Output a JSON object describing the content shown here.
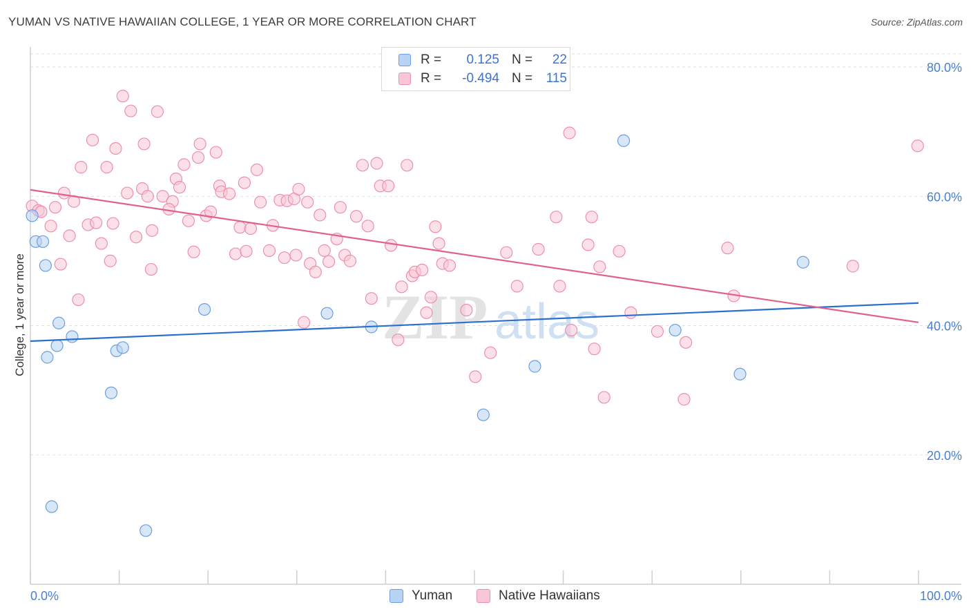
{
  "header": {
    "title": "YUMAN VS NATIVE HAWAIIAN COLLEGE, 1 YEAR OR MORE CORRELATION CHART",
    "source": "Source: ZipAtlas.com"
  },
  "legend_top": {
    "rows": [
      {
        "r_label": "R =",
        "r_value": "0.125",
        "n_label": "N =",
        "n_value": "22"
      },
      {
        "r_label": "R =",
        "r_value": "-0.494",
        "n_label": "N =",
        "n_value": "115"
      }
    ]
  },
  "legend_bottom": {
    "items": [
      "Yuman",
      "Native Hawaiians"
    ]
  },
  "watermark": {
    "zip": "ZIP",
    "atlas": "atlas"
  },
  "colors": {
    "yuman_fill": "#b8d3f3",
    "yuman_stroke": "#6a9ee0",
    "yuman_line": "#2a6fd0",
    "hawaiian_fill": "#f9c6d6",
    "hawaiian_stroke": "#ec8fae",
    "hawaiian_line": "#e0608c",
    "tick_text": "#4a7fcf"
  },
  "chart_data": {
    "type": "scatter",
    "title": "YUMAN VS NATIVE HAWAIIAN COLLEGE, 1 YEAR OR MORE CORRELATION CHART",
    "xlabel": "",
    "ylabel": "College, 1 year or more",
    "xlim": [
      0,
      100
    ],
    "ylim": [
      0,
      84
    ],
    "x_tick_labels": [
      "0.0%",
      "100.0%"
    ],
    "y_ticks": [
      20,
      40,
      60,
      80
    ],
    "y_tick_labels": [
      "20.0%",
      "40.0%",
      "60.0%",
      "80.0%"
    ],
    "grid": true,
    "series": [
      {
        "name": "Yuman",
        "R": 0.125,
        "N": 22,
        "trend": {
          "x": [
            0,
            100
          ],
          "y": [
            37.6,
            43.5
          ]
        },
        "points": [
          {
            "x": 0.2,
            "y": 57.0
          },
          {
            "x": 0.6,
            "y": 53.0
          },
          {
            "x": 1.4,
            "y": 53.0
          },
          {
            "x": 1.7,
            "y": 49.3
          },
          {
            "x": 3.2,
            "y": 40.4
          },
          {
            "x": 4.7,
            "y": 38.3
          },
          {
            "x": 3.0,
            "y": 36.9
          },
          {
            "x": 1.9,
            "y": 35.1
          },
          {
            "x": 9.7,
            "y": 36.1
          },
          {
            "x": 10.4,
            "y": 36.6
          },
          {
            "x": 9.1,
            "y": 29.6
          },
          {
            "x": 19.6,
            "y": 42.5
          },
          {
            "x": 33.4,
            "y": 41.9
          },
          {
            "x": 38.4,
            "y": 39.8
          },
          {
            "x": 56.8,
            "y": 33.7
          },
          {
            "x": 51.0,
            "y": 26.2
          },
          {
            "x": 66.8,
            "y": 68.6
          },
          {
            "x": 72.6,
            "y": 39.3
          },
          {
            "x": 87.0,
            "y": 49.8
          },
          {
            "x": 79.9,
            "y": 32.5
          },
          {
            "x": 2.4,
            "y": 12.0
          },
          {
            "x": 13.0,
            "y": 8.3
          }
        ]
      },
      {
        "name": "Native Hawaiians",
        "R": -0.494,
        "N": 115,
        "trend": {
          "x": [
            0,
            100
          ],
          "y": [
            61.0,
            40.5
          ]
        },
        "points": [
          {
            "x": 0.2,
            "y": 58.5
          },
          {
            "x": 0.9,
            "y": 57.8
          },
          {
            "x": 1.2,
            "y": 57.6
          },
          {
            "x": 2.8,
            "y": 58.3
          },
          {
            "x": 3.8,
            "y": 60.5
          },
          {
            "x": 4.9,
            "y": 59.2
          },
          {
            "x": 2.3,
            "y": 55.4
          },
          {
            "x": 4.4,
            "y": 53.9
          },
          {
            "x": 3.4,
            "y": 49.5
          },
          {
            "x": 5.4,
            "y": 44.0
          },
          {
            "x": 5.7,
            "y": 64.5
          },
          {
            "x": 6.5,
            "y": 55.6
          },
          {
            "x": 7.4,
            "y": 55.9
          },
          {
            "x": 8.0,
            "y": 52.7
          },
          {
            "x": 9.0,
            "y": 50.0
          },
          {
            "x": 7.0,
            "y": 68.7
          },
          {
            "x": 8.6,
            "y": 64.5
          },
          {
            "x": 9.6,
            "y": 67.4
          },
          {
            "x": 10.4,
            "y": 75.5
          },
          {
            "x": 11.3,
            "y": 73.2
          },
          {
            "x": 10.9,
            "y": 60.5
          },
          {
            "x": 12.6,
            "y": 61.2
          },
          {
            "x": 12.8,
            "y": 68.1
          },
          {
            "x": 14.3,
            "y": 73.1
          },
          {
            "x": 9.3,
            "y": 55.8
          },
          {
            "x": 11.9,
            "y": 53.7
          },
          {
            "x": 13.7,
            "y": 54.7
          },
          {
            "x": 13.6,
            "y": 48.7
          },
          {
            "x": 14.9,
            "y": 60.0
          },
          {
            "x": 16.0,
            "y": 59.2
          },
          {
            "x": 15.6,
            "y": 58.0
          },
          {
            "x": 16.4,
            "y": 62.7
          },
          {
            "x": 16.8,
            "y": 61.4
          },
          {
            "x": 17.3,
            "y": 64.9
          },
          {
            "x": 17.8,
            "y": 56.2
          },
          {
            "x": 18.4,
            "y": 51.4
          },
          {
            "x": 18.9,
            "y": 66.0
          },
          {
            "x": 19.1,
            "y": 68.1
          },
          {
            "x": 19.8,
            "y": 57.0
          },
          {
            "x": 20.3,
            "y": 57.6
          },
          {
            "x": 20.9,
            "y": 66.8
          },
          {
            "x": 21.3,
            "y": 61.6
          },
          {
            "x": 21.5,
            "y": 60.7
          },
          {
            "x": 22.4,
            "y": 60.4
          },
          {
            "x": 23.6,
            "y": 55.2
          },
          {
            "x": 24.1,
            "y": 62.1
          },
          {
            "x": 24.8,
            "y": 55.0
          },
          {
            "x": 25.5,
            "y": 64.1
          },
          {
            "x": 23.1,
            "y": 51.1
          },
          {
            "x": 24.3,
            "y": 51.5
          },
          {
            "x": 25.9,
            "y": 59.1
          },
          {
            "x": 26.9,
            "y": 51.6
          },
          {
            "x": 27.3,
            "y": 55.5
          },
          {
            "x": 28.1,
            "y": 59.4
          },
          {
            "x": 28.6,
            "y": 50.5
          },
          {
            "x": 28.9,
            "y": 59.3
          },
          {
            "x": 29.7,
            "y": 59.6
          },
          {
            "x": 29.9,
            "y": 50.9
          },
          {
            "x": 30.2,
            "y": 61.1
          },
          {
            "x": 30.8,
            "y": 40.5
          },
          {
            "x": 31.2,
            "y": 59.1
          },
          {
            "x": 31.5,
            "y": 49.6
          },
          {
            "x": 32.1,
            "y": 48.3
          },
          {
            "x": 32.6,
            "y": 57.1
          },
          {
            "x": 33.1,
            "y": 51.6
          },
          {
            "x": 33.6,
            "y": 49.9
          },
          {
            "x": 34.5,
            "y": 53.4
          },
          {
            "x": 34.9,
            "y": 58.3
          },
          {
            "x": 35.4,
            "y": 50.9
          },
          {
            "x": 36.0,
            "y": 50.0
          },
          {
            "x": 36.7,
            "y": 56.9
          },
          {
            "x": 37.4,
            "y": 64.8
          },
          {
            "x": 38.0,
            "y": 55.4
          },
          {
            "x": 38.4,
            "y": 44.2
          },
          {
            "x": 39.0,
            "y": 65.1
          },
          {
            "x": 39.4,
            "y": 61.6
          },
          {
            "x": 40.3,
            "y": 61.6
          },
          {
            "x": 40.6,
            "y": 52.4
          },
          {
            "x": 41.4,
            "y": 37.8
          },
          {
            "x": 41.8,
            "y": 46.0
          },
          {
            "x": 42.4,
            "y": 64.8
          },
          {
            "x": 43.0,
            "y": 47.7
          },
          {
            "x": 43.3,
            "y": 48.3
          },
          {
            "x": 44.1,
            "y": 48.6
          },
          {
            "x": 44.6,
            "y": 42.0
          },
          {
            "x": 45.1,
            "y": 44.4
          },
          {
            "x": 45.6,
            "y": 55.3
          },
          {
            "x": 46.0,
            "y": 52.7
          },
          {
            "x": 46.4,
            "y": 49.6
          },
          {
            "x": 47.2,
            "y": 49.3
          },
          {
            "x": 49.1,
            "y": 42.4
          },
          {
            "x": 50.1,
            "y": 32.1
          },
          {
            "x": 51.8,
            "y": 35.8
          },
          {
            "x": 53.6,
            "y": 51.3
          },
          {
            "x": 54.8,
            "y": 46.1
          },
          {
            "x": 57.2,
            "y": 51.8
          },
          {
            "x": 59.2,
            "y": 56.8
          },
          {
            "x": 59.6,
            "y": 46.1
          },
          {
            "x": 60.7,
            "y": 69.8
          },
          {
            "x": 60.9,
            "y": 39.3
          },
          {
            "x": 62.8,
            "y": 52.5
          },
          {
            "x": 63.2,
            "y": 56.8
          },
          {
            "x": 63.5,
            "y": 36.4
          },
          {
            "x": 64.1,
            "y": 49.1
          },
          {
            "x": 64.6,
            "y": 28.9
          },
          {
            "x": 66.3,
            "y": 51.5
          },
          {
            "x": 67.6,
            "y": 42.0
          },
          {
            "x": 70.6,
            "y": 39.1
          },
          {
            "x": 73.6,
            "y": 28.6
          },
          {
            "x": 73.8,
            "y": 37.4
          },
          {
            "x": 78.5,
            "y": 52.0
          },
          {
            "x": 79.2,
            "y": 44.6
          },
          {
            "x": 92.6,
            "y": 49.2
          },
          {
            "x": 99.9,
            "y": 67.8
          },
          {
            "x": 13.2,
            "y": 60.0
          }
        ]
      }
    ]
  }
}
